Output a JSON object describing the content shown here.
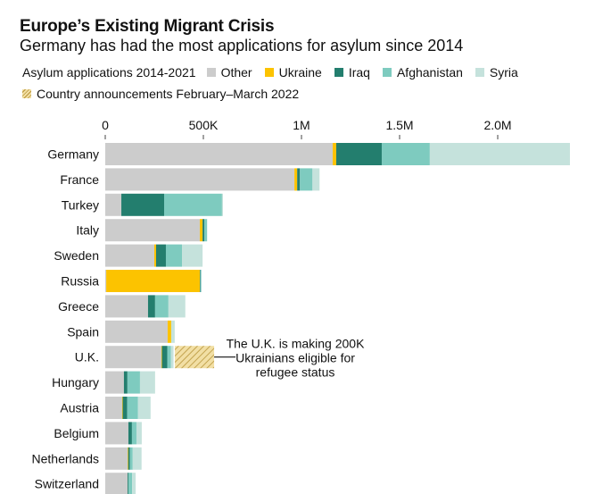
{
  "header": {
    "title": "Europe’s Existing Migrant Crisis",
    "subtitle": "Germany has had the most applications for asylum since 2014"
  },
  "legend": {
    "label": "Asylum applications 2014-2021",
    "items": [
      {
        "name": "Other",
        "color": "#cccccc"
      },
      {
        "name": "Ukraine",
        "color": "#fcc300"
      },
      {
        "name": "Iraq",
        "color": "#237e6e"
      },
      {
        "name": "Afghanistan",
        "color": "#7ecbbf"
      },
      {
        "name": "Syria",
        "color": "#c5e2dc"
      }
    ],
    "announcement_label": "Country announcements February–March 2022"
  },
  "annotation": {
    "lines": [
      "The U.K. is making 200K",
      "Ukrainians eligible for",
      "refugee status"
    ]
  },
  "chart_data": {
    "type": "bar",
    "orientation": "horizontal",
    "stacked": true,
    "title": "Europe’s Existing Migrant Crisis",
    "subtitle": "Germany has had the most applications for asylum since 2014",
    "xlabel": "Asylum applications 2014-2021",
    "ylabel": "",
    "xlim": [
      0,
      2370000
    ],
    "xticks": [
      0,
      500000,
      1000000,
      1500000,
      2000000
    ],
    "xtick_labels": [
      "0",
      "500K",
      "1M",
      "1.5M",
      "2.0M"
    ],
    "grid": false,
    "legend_position": "top",
    "categories": [
      "Germany",
      "France",
      "Turkey",
      "Italy",
      "Sweden",
      "Russia",
      "Greece",
      "Spain",
      "U.K.",
      "Hungary",
      "Austria",
      "Belgium",
      "Netherlands",
      "Switzerland"
    ],
    "series": [
      {
        "name": "Other",
        "color": "#cccccc",
        "values": [
          1159000,
          964000,
          82000,
          482000,
          250000,
          5000,
          218000,
          318000,
          286000,
          95000,
          86000,
          118000,
          114000,
          114000
        ]
      },
      {
        "name": "Ukraine",
        "color": "#fcc300",
        "values": [
          18000,
          14000,
          0,
          14000,
          9000,
          477000,
          0,
          18000,
          3000,
          0,
          3000,
          0,
          3000,
          0
        ]
      },
      {
        "name": "Iraq",
        "color": "#237e6e",
        "values": [
          232000,
          14000,
          218000,
          9000,
          50000,
          3000,
          36000,
          0,
          27000,
          18000,
          23000,
          18000,
          9000,
          5000
        ]
      },
      {
        "name": "Afghanistan",
        "color": "#7ecbbf",
        "values": [
          245000,
          64000,
          295000,
          14000,
          82000,
          3000,
          68000,
          0,
          18000,
          64000,
          55000,
          23000,
          14000,
          18000
        ]
      },
      {
        "name": "Syria",
        "color": "#c5e2dc",
        "values": [
          714000,
          36000,
          5000,
          0,
          105000,
          3000,
          86000,
          18000,
          14000,
          77000,
          64000,
          27000,
          45000,
          18000
        ]
      }
    ],
    "announcements": [
      {
        "category": "U.K.",
        "name": "Country announcements February–March 2022",
        "value": 200000,
        "pattern": "hatched"
      }
    ],
    "annotations": [
      {
        "target": "U.K.",
        "text": "The U.K. is making 200K Ukrainians eligible for refugee status"
      }
    ]
  }
}
